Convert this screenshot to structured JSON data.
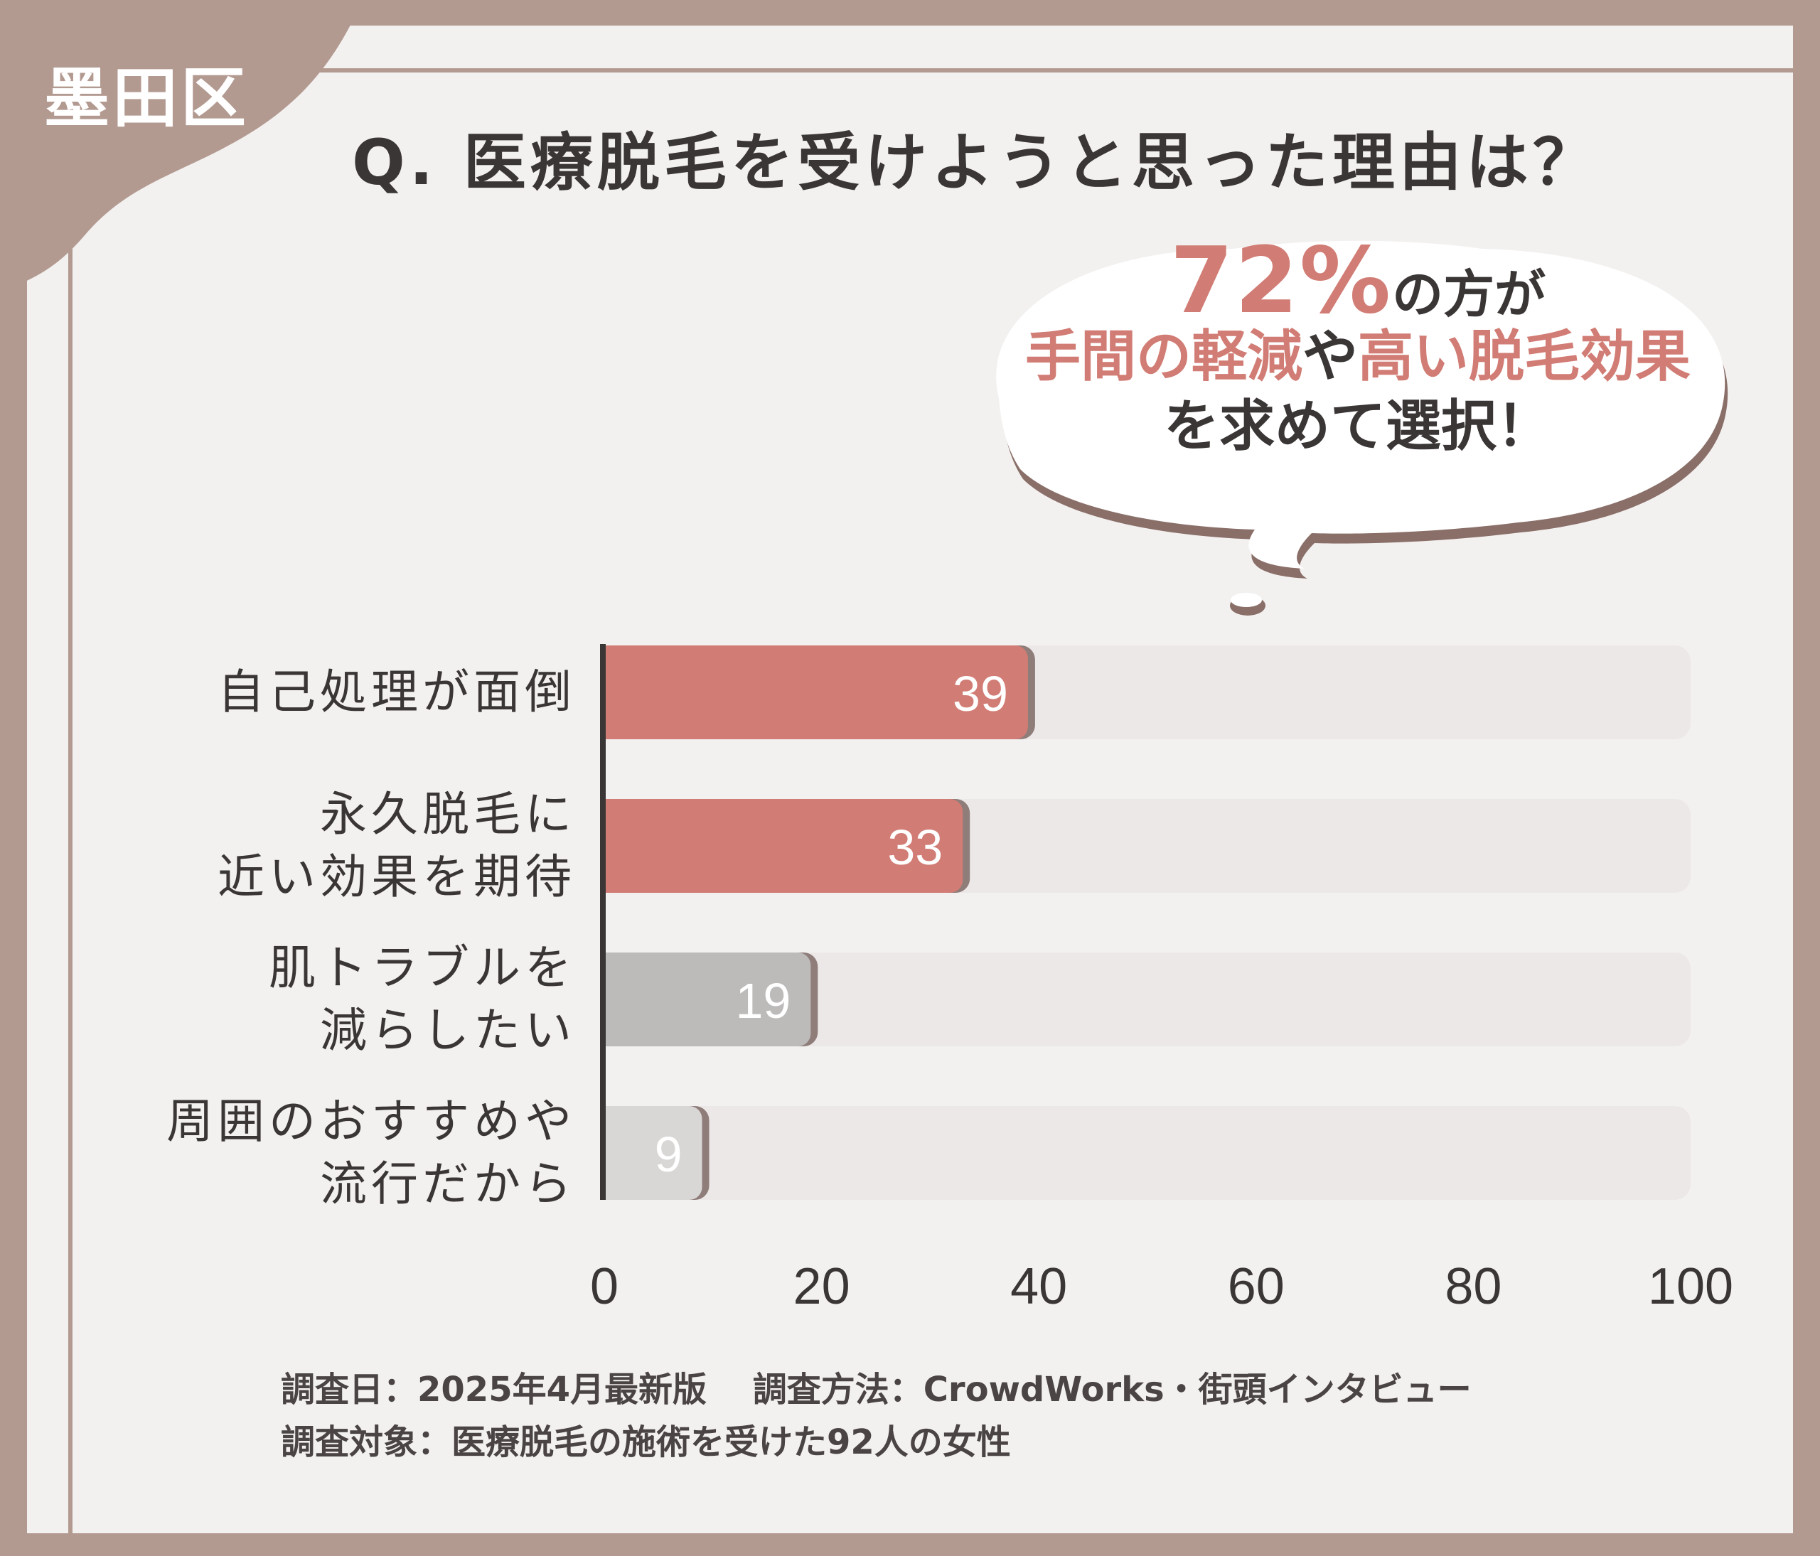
{
  "ward": "墨田区",
  "question": "Q. 医療脱毛を受けようと思った理由は？",
  "bubble": {
    "pct": "72%",
    "line1_rest": "の方が",
    "line2_a": "手間の軽減",
    "line2_b": "や",
    "line2_c": "高い脱毛効果",
    "line3": "を求めて選択！"
  },
  "footer": {
    "line1": "調査日：2025年4月最新版　 調査方法：CrowdWorks・街頭インタビュー",
    "line2": "調査対象：医療脱毛の施術を受けた92人の女性"
  },
  "colors": {
    "accent": "#d17c74",
    "frame": "#b39a91",
    "bar_gray": "#bdbbba",
    "bar_lightgray": "#d9d7d6",
    "track": "#ece8e7",
    "text": "#3b3636"
  },
  "chart_data": {
    "type": "bar",
    "orientation": "horizontal",
    "categories": [
      "自己処理が面倒",
      "永久脱毛に\n近い効果を期待",
      "肌トラブルを\n減らしたい",
      "周囲のおすすめや\n流行だから"
    ],
    "values": [
      39,
      33,
      19,
      9
    ],
    "data_labels": [
      "39",
      "33",
      "19",
      "9"
    ],
    "bar_colors": [
      "#d17c74",
      "#d17c74",
      "#bdbbba",
      "#d9d7d6"
    ],
    "xlim": [
      0,
      100
    ],
    "xticks": [
      "0",
      "20",
      "40",
      "60",
      "80",
      "100"
    ],
    "grid": false,
    "legend": "none"
  }
}
